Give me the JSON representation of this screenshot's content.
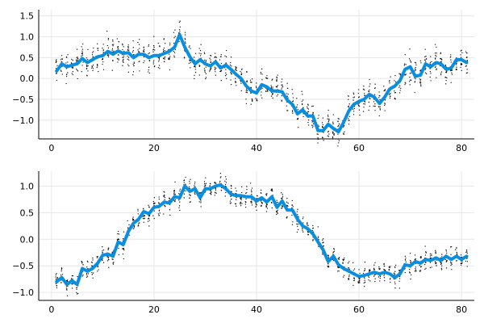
{
  "chart_data": [
    {
      "type": "line",
      "x_ticks": [
        0,
        20,
        40,
        60,
        80
      ],
      "y_ticks": [
        1.5,
        1.0,
        0.5,
        0.0,
        -0.5,
        -1.0
      ],
      "y_tick_labels": [
        "1.5",
        "1.0",
        "0.5",
        "0.0",
        "−0.5",
        "−1.0"
      ],
      "xlim": [
        -2.5,
        82.5
      ],
      "ylim": [
        -1.45,
        1.65
      ],
      "grid": true,
      "legend": "none",
      "line_color": "#0a8ee0",
      "scatter_color": "#000000",
      "line_values": [
        0.18,
        0.35,
        0.28,
        0.32,
        0.35,
        0.48,
        0.38,
        0.45,
        0.52,
        0.55,
        0.65,
        0.58,
        0.66,
        0.6,
        0.62,
        0.5,
        0.58,
        0.58,
        0.5,
        0.55,
        0.55,
        0.6,
        0.65,
        0.75,
        1.05,
        0.75,
        0.52,
        0.35,
        0.45,
        0.35,
        0.3,
        0.4,
        0.25,
        0.32,
        0.22,
        0.1,
        0.0,
        -0.18,
        -0.3,
        -0.35,
        -0.15,
        -0.2,
        -0.3,
        -0.3,
        -0.32,
        -0.52,
        -0.62,
        -0.85,
        -0.75,
        -0.9,
        -0.9,
        -1.25,
        -1.25,
        -1.1,
        -1.2,
        -1.28,
        -1.05,
        -0.78,
        -0.62,
        -0.55,
        -0.5,
        -0.38,
        -0.45,
        -0.6,
        -0.45,
        -0.25,
        -0.18,
        -0.05,
        0.22,
        0.28,
        0.05,
        0.08,
        0.35,
        0.28,
        0.38,
        0.35,
        0.22,
        0.25,
        0.45,
        0.45,
        0.38
      ],
      "scatter_spread": 0.35
    },
    {
      "type": "line",
      "x_ticks": [
        0,
        20,
        40,
        60,
        80
      ],
      "y_ticks": [
        1.0,
        0.5,
        0.0,
        -0.5,
        -1.0
      ],
      "y_tick_labels": [
        "1.0",
        "0.5",
        "0.0",
        "−0.5",
        "−1.0"
      ],
      "xlim": [
        -2.5,
        82.5
      ],
      "ylim": [
        -1.15,
        1.28
      ],
      "grid": true,
      "legend": "none",
      "line_color": "#0a8ee0",
      "scatter_color": "#000000",
      "line_values": [
        -0.8,
        -0.72,
        -0.85,
        -0.78,
        -0.85,
        -0.55,
        -0.6,
        -0.55,
        -0.45,
        -0.3,
        -0.28,
        -0.32,
        -0.05,
        -0.1,
        0.15,
        0.3,
        0.38,
        0.52,
        0.48,
        0.6,
        0.62,
        0.7,
        0.68,
        0.8,
        0.78,
        1.0,
        0.9,
        0.95,
        0.78,
        0.95,
        0.95,
        1.0,
        1.02,
        0.95,
        0.85,
        0.82,
        0.82,
        0.8,
        0.8,
        0.72,
        0.78,
        0.7,
        0.8,
        0.6,
        0.72,
        0.55,
        0.55,
        0.38,
        0.25,
        0.2,
        0.1,
        -0.05,
        -0.2,
        -0.42,
        -0.32,
        -0.48,
        -0.55,
        -0.6,
        -0.65,
        -0.7,
        -0.68,
        -0.65,
        -0.62,
        -0.65,
        -0.62,
        -0.65,
        -0.72,
        -0.65,
        -0.48,
        -0.5,
        -0.42,
        -0.45,
        -0.38,
        -0.4,
        -0.35,
        -0.4,
        -0.32,
        -0.38,
        -0.32,
        -0.38,
        -0.32
      ],
      "scatter_spread": 0.2
    }
  ]
}
